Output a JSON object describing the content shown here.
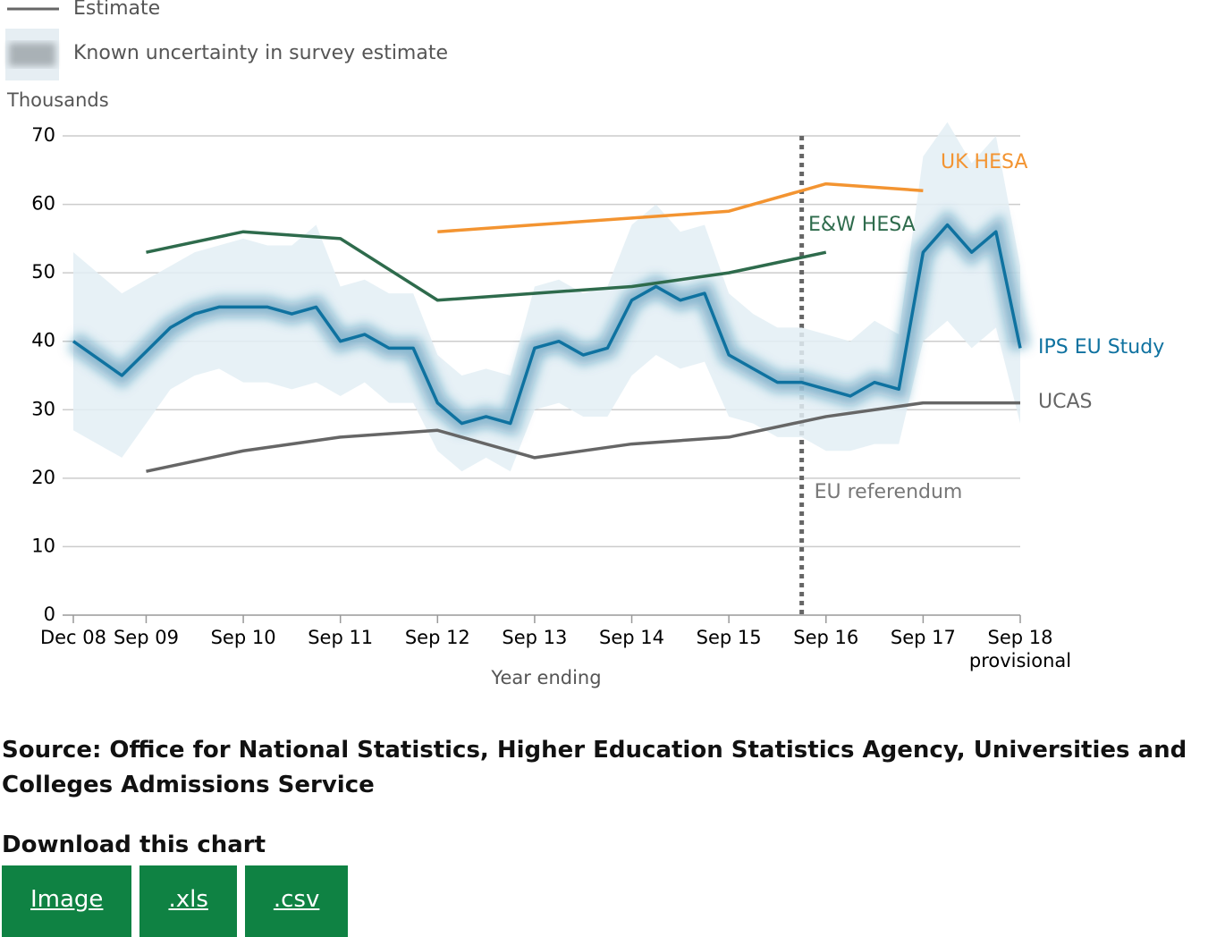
{
  "chart_data": {
    "type": "line",
    "legend": [
      "Estimate",
      "Known uncertainty in survey estimate"
    ],
    "ylabel": "Thousands",
    "xlabel": "Year ending",
    "xlim": [
      0,
      39
    ],
    "ylim": [
      0,
      70
    ],
    "yticks": [
      0,
      10,
      20,
      30,
      40,
      50,
      60,
      70
    ],
    "grid": true,
    "xticks": [
      {
        "value": 0,
        "label": "Dec 08"
      },
      {
        "value": 3,
        "label": "Sep 09"
      },
      {
        "value": 7,
        "label": "Sep 10"
      },
      {
        "value": 11,
        "label": "Sep 11"
      },
      {
        "value": 15,
        "label": "Sep 12"
      },
      {
        "value": 19,
        "label": "Sep 13"
      },
      {
        "value": 23,
        "label": "Sep 14"
      },
      {
        "value": 27,
        "label": "Sep 15"
      },
      {
        "value": 31,
        "label": "Sep 16"
      },
      {
        "value": 35,
        "label": "Sep 17"
      },
      {
        "value": 39,
        "label": "Sep 18"
      }
    ],
    "xtick_note": {
      "x": 39,
      "label": "provisional"
    },
    "annotation": {
      "x": 30,
      "label": "EU referendum"
    },
    "series": [
      {
        "name": "IPS EU Study",
        "color": "#0f72a0",
        "x": [
          0,
          1,
          2,
          3,
          4,
          5,
          6,
          7,
          8,
          9,
          10,
          11,
          12,
          13,
          14,
          15,
          16,
          17,
          18,
          19,
          20,
          21,
          22,
          23,
          24,
          25,
          26,
          27,
          28,
          29,
          30,
          31,
          32,
          33,
          34,
          35,
          36,
          37,
          38,
          39
        ],
        "values": [
          40,
          37.5,
          35,
          38.5,
          42,
          44,
          45,
          45,
          45,
          44,
          45,
          40,
          41,
          39,
          39,
          31,
          28,
          29,
          28,
          39,
          40,
          38,
          39,
          46,
          48,
          46,
          47,
          38,
          36,
          34,
          34,
          33,
          32,
          34,
          33,
          53,
          57,
          53,
          56,
          39
        ],
        "upper": [
          53,
          50,
          47,
          49,
          51,
          53,
          54,
          55,
          54,
          54,
          57,
          48,
          49,
          47,
          47,
          38,
          35,
          36,
          35,
          48,
          49,
          47,
          48,
          57,
          60,
          56,
          57,
          47,
          44,
          42,
          42,
          41,
          40,
          43,
          41,
          67,
          72,
          66,
          70,
          51
        ],
        "lower": [
          27,
          25,
          23,
          28,
          33,
          35,
          36,
          34,
          34,
          33,
          34,
          32,
          34,
          31,
          31,
          24,
          21,
          23,
          21,
          30,
          31,
          29,
          29,
          35,
          38,
          36,
          37,
          29,
          28,
          26,
          26,
          24,
          24,
          25,
          25,
          40,
          43,
          39,
          42,
          28
        ]
      },
      {
        "name": "UK HESA",
        "color": "#f39431",
        "x": [
          15,
          19,
          23,
          27,
          31,
          35
        ],
        "values": [
          56,
          57,
          58,
          59,
          63,
          62
        ]
      },
      {
        "name": "E&W HESA",
        "color": "#2e6b4c",
        "x": [
          3,
          7,
          11,
          15,
          19,
          23,
          27,
          31
        ],
        "values": [
          53,
          56,
          55,
          46,
          47,
          48,
          50,
          53
        ]
      },
      {
        "name": "UCAS",
        "color": "#666666",
        "x": [
          3,
          7,
          11,
          15,
          19,
          23,
          27,
          31,
          35,
          39
        ],
        "values": [
          21,
          24,
          26,
          27,
          23,
          25,
          26,
          29,
          31,
          31
        ]
      }
    ]
  },
  "source": "Source: Office for National Statistics, Higher Education Statistics Agency, Universities and Colleges Admissions Service",
  "download": {
    "title": "Download this chart",
    "buttons": [
      "Image",
      ".xls",
      ".csv"
    ]
  }
}
